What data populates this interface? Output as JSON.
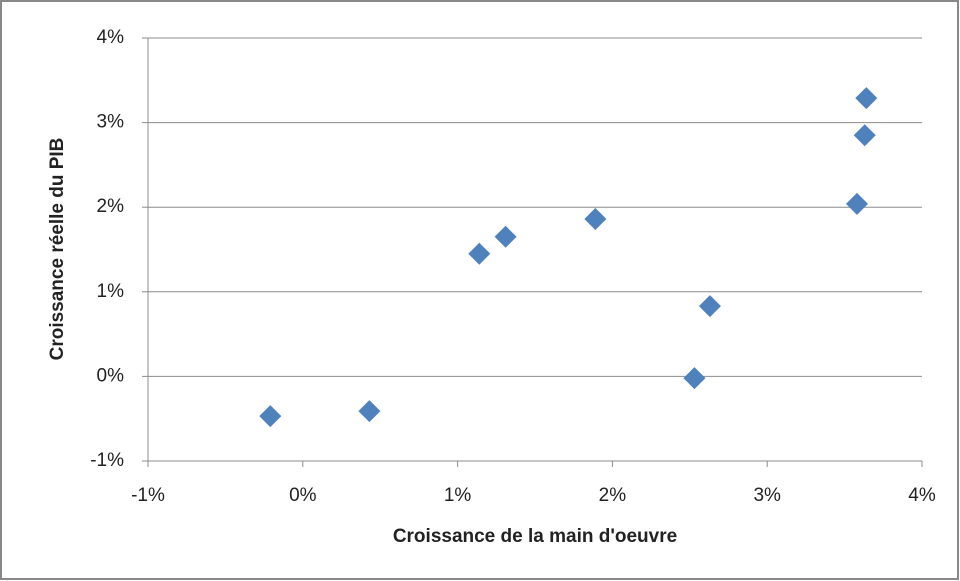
{
  "chart_data": {
    "type": "scatter",
    "x_label": "Croissance de la main d'oeuvre",
    "y_label": "Croissance réelle du PIB",
    "x": [
      -0.21,
      0.43,
      1.14,
      1.31,
      1.89,
      2.53,
      2.63,
      3.58,
      3.63,
      3.64
    ],
    "values": [
      -0.47,
      -0.41,
      1.45,
      1.65,
      1.86,
      -0.02,
      0.83,
      2.04,
      2.85,
      3.29
    ],
    "color": "#4f81bd",
    "xlim": [
      -1,
      4
    ],
    "xticks": [
      {
        "value": -1,
        "label": "-1%"
      },
      {
        "value": 0,
        "label": "0%"
      },
      {
        "value": 1,
        "label": "1%"
      },
      {
        "value": 2,
        "label": "2%"
      },
      {
        "value": 3,
        "label": "3%"
      },
      {
        "value": 4,
        "label": "4%"
      }
    ],
    "ylim": [
      -1,
      4
    ],
    "yticks": [
      {
        "value": -1,
        "label": "-1%"
      },
      {
        "value": 0,
        "label": "0%"
      },
      {
        "value": 1,
        "label": "1%"
      },
      {
        "value": 2,
        "label": "2%"
      },
      {
        "value": 3,
        "label": "3%"
      },
      {
        "value": 4,
        "label": "4%"
      }
    ],
    "grid": true
  }
}
